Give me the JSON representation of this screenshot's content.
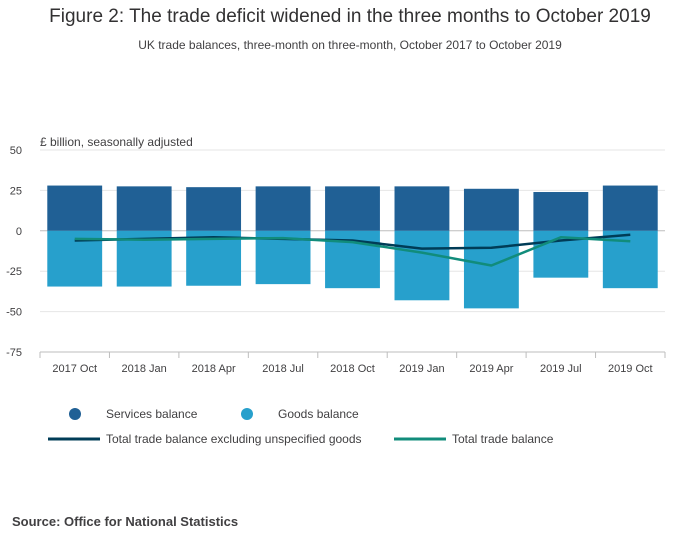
{
  "header": {
    "title": "Figure 2: The trade deficit widened in the three months to October 2019",
    "subtitle": "UK trade balances, three-month on three-month, October 2017 to October 2019"
  },
  "footer": {
    "source": "Source: Office for National Statistics"
  },
  "chart_data": {
    "type": "bar",
    "stacked": true,
    "title": "Figure 2: The trade deficit widened in the three months to October 2019",
    "subtitle": "UK trade balances, three-month on three-month, October 2017 to October 2019",
    "ylabel": "£ billion, seasonally adjusted",
    "xlabel": "",
    "ylim": [
      -75,
      50
    ],
    "yticks": [
      50,
      25,
      0,
      -25,
      -50,
      -75
    ],
    "grid": true,
    "legend_position": "bottom",
    "categories": [
      "2017 Oct",
      "2018 Jan",
      "2018 Apr",
      "2018 Jul",
      "2018 Oct",
      "2019 Jan",
      "2019 Apr",
      "2019 Jul",
      "2019 Oct"
    ],
    "series": [
      {
        "name": "Services balance",
        "kind": "bar",
        "color": "#206095",
        "values": [
          28,
          27.5,
          27,
          27.5,
          27.5,
          27.5,
          26,
          24,
          28
        ]
      },
      {
        "name": "Goods balance",
        "kind": "bar",
        "color": "#27a0cc",
        "values": [
          -34.5,
          -34.5,
          -34,
          -33,
          -35.5,
          -43,
          -48,
          -29,
          -35.5
        ]
      },
      {
        "name": "Total trade balance excluding unspecified goods",
        "kind": "line",
        "color": "#003c57",
        "values": [
          -6,
          -5,
          -4,
          -5,
          -6,
          -11,
          -10.5,
          -6,
          -2.5
        ]
      },
      {
        "name": "Total trade balance",
        "kind": "line",
        "color": "#118c7b",
        "values": [
          -5,
          -5.5,
          -5,
          -4.5,
          -7,
          -13.5,
          -21.5,
          -4,
          -6.5
        ]
      }
    ]
  }
}
